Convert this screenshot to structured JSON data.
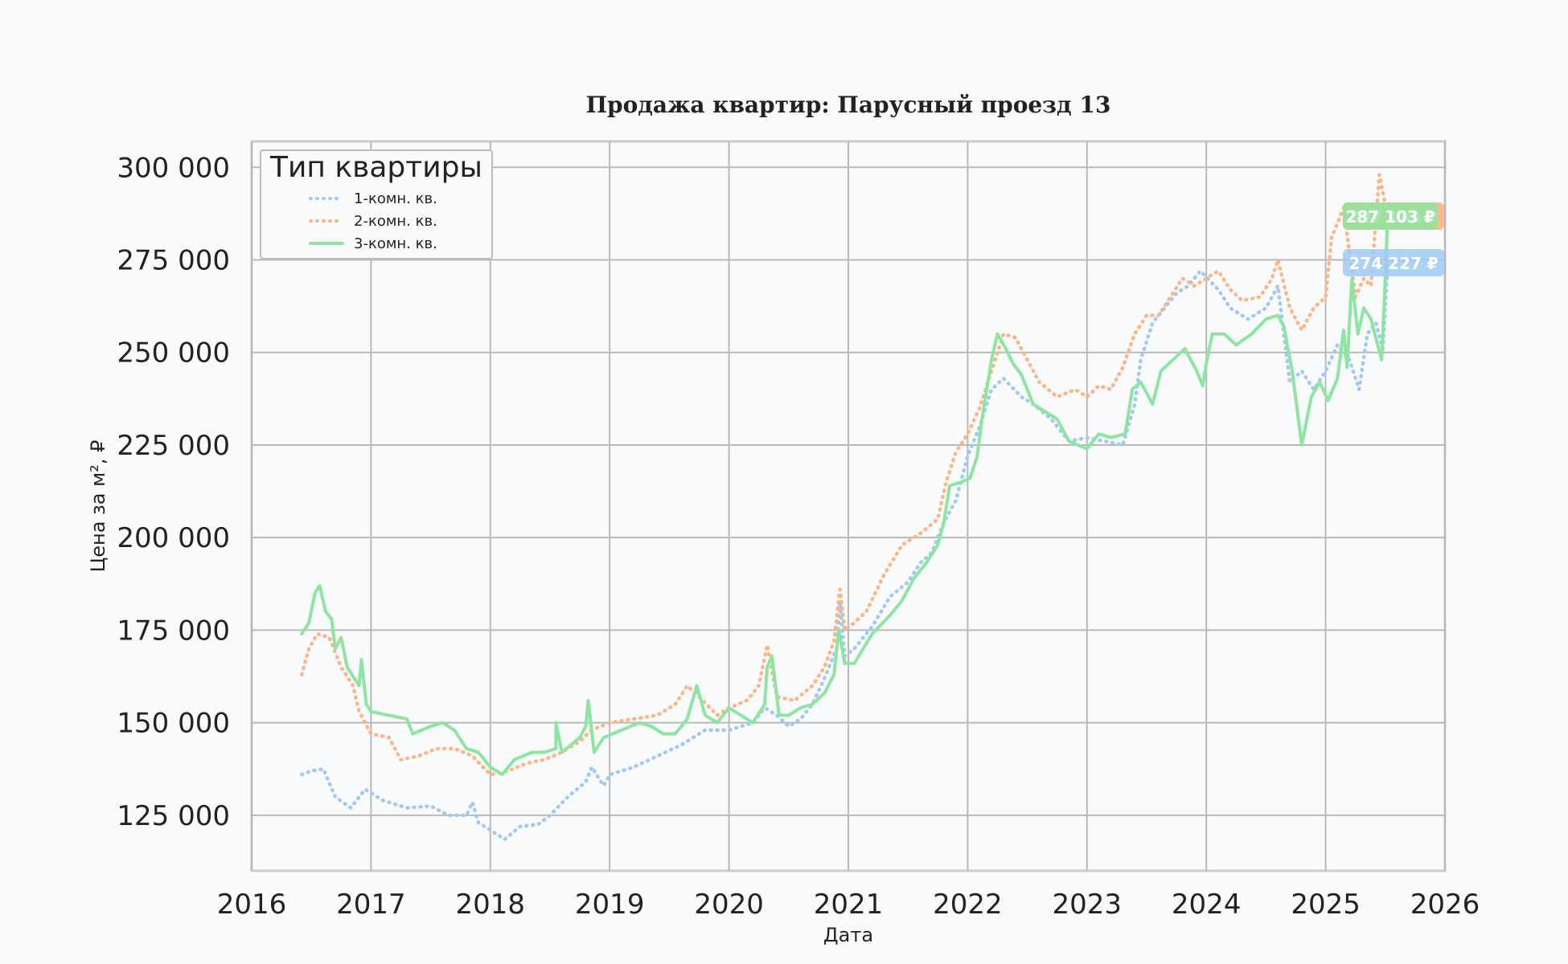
{
  "chart_data": {
    "type": "line",
    "title": "Продажа квартир: Парусный проезд 13",
    "xlabel": "Дата",
    "ylabel": "Цена за м², ₽",
    "xlim": [
      2016.0,
      2026.0
    ],
    "ylim": [
      110000,
      307000
    ],
    "grid": true,
    "legend_title": "Тип квартиры",
    "legend_position": "top-left",
    "x_ticks": [
      "2016",
      "2017",
      "2018",
      "2019",
      "2020",
      "2021",
      "2022",
      "2023",
      "2024",
      "2025",
      "2026"
    ],
    "y_ticks": [
      {
        "value": 125000,
        "label": "125 000"
      },
      {
        "value": 150000,
        "label": "150 000"
      },
      {
        "value": 175000,
        "label": "175 000"
      },
      {
        "value": 200000,
        "label": "200 000"
      },
      {
        "value": 225000,
        "label": "225 000"
      },
      {
        "value": 250000,
        "label": "250 000"
      },
      {
        "value": 275000,
        "label": "275 000"
      },
      {
        "value": 300000,
        "label": "300 000"
      }
    ],
    "series": [
      {
        "name": "1-комн. кв.",
        "color": "#a1c9f4",
        "style": "dotted",
        "last_label": "274 227 ₽",
        "points": [
          [
            2016.42,
            136000
          ],
          [
            2016.5,
            137000
          ],
          [
            2016.6,
            137500
          ],
          [
            2016.7,
            130000
          ],
          [
            2016.83,
            127000
          ],
          [
            2016.95,
            132000
          ],
          [
            2017.1,
            129000
          ],
          [
            2017.3,
            127000
          ],
          [
            2017.5,
            127500
          ],
          [
            2017.65,
            125000
          ],
          [
            2017.8,
            125000
          ],
          [
            2017.85,
            128500
          ],
          [
            2017.9,
            123000
          ],
          [
            2018.0,
            121000
          ],
          [
            2018.12,
            118500
          ],
          [
            2018.25,
            122000
          ],
          [
            2018.4,
            122500
          ],
          [
            2018.5,
            125000
          ],
          [
            2018.65,
            130000
          ],
          [
            2018.8,
            134000
          ],
          [
            2018.85,
            138000
          ],
          [
            2018.95,
            133000
          ],
          [
            2019.0,
            136000
          ],
          [
            2019.2,
            138000
          ],
          [
            2019.4,
            141000
          ],
          [
            2019.6,
            144000
          ],
          [
            2019.8,
            148000
          ],
          [
            2020.0,
            148000
          ],
          [
            2020.2,
            150000
          ],
          [
            2020.3,
            154000
          ],
          [
            2020.4,
            152000
          ],
          [
            2020.5,
            149000
          ],
          [
            2020.6,
            151000
          ],
          [
            2020.7,
            155000
          ],
          [
            2020.8,
            162000
          ],
          [
            2020.9,
            170000
          ],
          [
            2020.93,
            182000
          ],
          [
            2020.97,
            168000
          ],
          [
            2021.05,
            170000
          ],
          [
            2021.2,
            176000
          ],
          [
            2021.35,
            184000
          ],
          [
            2021.5,
            188000
          ],
          [
            2021.6,
            193000
          ],
          [
            2021.7,
            196000
          ],
          [
            2021.8,
            204000
          ],
          [
            2021.9,
            210000
          ],
          [
            2022.0,
            222000
          ],
          [
            2022.1,
            230000
          ],
          [
            2022.2,
            240000
          ],
          [
            2022.3,
            243000
          ],
          [
            2022.45,
            238000
          ],
          [
            2022.55,
            236000
          ],
          [
            2022.7,
            232000
          ],
          [
            2022.85,
            226000
          ],
          [
            2023.0,
            227000
          ],
          [
            2023.15,
            226000
          ],
          [
            2023.3,
            225000
          ],
          [
            2023.4,
            236000
          ],
          [
            2023.45,
            248000
          ],
          [
            2023.55,
            258000
          ],
          [
            2023.65,
            262000
          ],
          [
            2023.75,
            266000
          ],
          [
            2023.85,
            268000
          ],
          [
            2023.95,
            272000
          ],
          [
            2024.1,
            267000
          ],
          [
            2024.2,
            262000
          ],
          [
            2024.35,
            259000
          ],
          [
            2024.5,
            262000
          ],
          [
            2024.6,
            268000
          ],
          [
            2024.7,
            242000
          ],
          [
            2024.8,
            245000
          ],
          [
            2024.9,
            240000
          ],
          [
            2025.0,
            245000
          ],
          [
            2025.1,
            252000
          ],
          [
            2025.2,
            248000
          ],
          [
            2025.28,
            240000
          ],
          [
            2025.35,
            255000
          ],
          [
            2025.42,
            258000
          ],
          [
            2025.48,
            251000
          ],
          [
            2025.52,
            274227
          ]
        ]
      },
      {
        "name": "2-комн. кв.",
        "color": "#ffb482",
        "style": "dotted",
        "last_label": "287 103 ₽",
        "points": [
          [
            2016.42,
            163000
          ],
          [
            2016.48,
            170000
          ],
          [
            2016.55,
            174000
          ],
          [
            2016.65,
            173000
          ],
          [
            2016.75,
            165000
          ],
          [
            2016.85,
            160000
          ],
          [
            2016.9,
            153000
          ],
          [
            2017.0,
            147000
          ],
          [
            2017.15,
            146000
          ],
          [
            2017.25,
            140000
          ],
          [
            2017.4,
            141000
          ],
          [
            2017.55,
            143000
          ],
          [
            2017.7,
            143000
          ],
          [
            2017.85,
            141000
          ],
          [
            2018.0,
            136000
          ],
          [
            2018.15,
            137000
          ],
          [
            2018.3,
            139000
          ],
          [
            2018.45,
            140000
          ],
          [
            2018.6,
            142000
          ],
          [
            2018.75,
            145000
          ],
          [
            2018.85,
            148000
          ],
          [
            2019.0,
            150000
          ],
          [
            2019.2,
            151000
          ],
          [
            2019.4,
            152000
          ],
          [
            2019.55,
            155000
          ],
          [
            2019.65,
            160000
          ],
          [
            2019.75,
            157000
          ],
          [
            2019.9,
            152000
          ],
          [
            2020.0,
            154000
          ],
          [
            2020.15,
            156000
          ],
          [
            2020.25,
            160000
          ],
          [
            2020.32,
            171000
          ],
          [
            2020.4,
            157000
          ],
          [
            2020.55,
            156000
          ],
          [
            2020.7,
            160000
          ],
          [
            2020.8,
            165000
          ],
          [
            2020.88,
            172000
          ],
          [
            2020.93,
            186000
          ],
          [
            2020.97,
            175000
          ],
          [
            2021.05,
            177000
          ],
          [
            2021.15,
            180000
          ],
          [
            2021.3,
            190000
          ],
          [
            2021.45,
            198000
          ],
          [
            2021.6,
            201000
          ],
          [
            2021.75,
            205000
          ],
          [
            2021.82,
            215000
          ],
          [
            2021.9,
            223000
          ],
          [
            2022.0,
            228000
          ],
          [
            2022.1,
            235000
          ],
          [
            2022.2,
            245000
          ],
          [
            2022.3,
            255000
          ],
          [
            2022.4,
            254000
          ],
          [
            2022.5,
            248000
          ],
          [
            2022.6,
            242000
          ],
          [
            2022.75,
            238000
          ],
          [
            2022.9,
            240000
          ],
          [
            2023.0,
            238000
          ],
          [
            2023.1,
            241000
          ],
          [
            2023.2,
            240000
          ],
          [
            2023.3,
            246000
          ],
          [
            2023.4,
            255000
          ],
          [
            2023.5,
            260000
          ],
          [
            2023.6,
            260000
          ],
          [
            2023.7,
            265000
          ],
          [
            2023.8,
            270000
          ],
          [
            2023.9,
            268000
          ],
          [
            2024.0,
            270000
          ],
          [
            2024.1,
            272000
          ],
          [
            2024.2,
            267000
          ],
          [
            2024.3,
            264000
          ],
          [
            2024.45,
            265000
          ],
          [
            2024.55,
            270000
          ],
          [
            2024.6,
            275000
          ],
          [
            2024.7,
            262000
          ],
          [
            2024.8,
            256000
          ],
          [
            2024.9,
            262000
          ],
          [
            2025.0,
            265000
          ],
          [
            2025.05,
            281000
          ],
          [
            2025.1,
            285000
          ],
          [
            2025.15,
            289000
          ],
          [
            2025.2,
            277000
          ],
          [
            2025.25,
            265000
          ],
          [
            2025.32,
            270000
          ],
          [
            2025.38,
            268000
          ],
          [
            2025.45,
            298000
          ],
          [
            2025.5,
            290000
          ],
          [
            2025.52,
            287103
          ]
        ]
      },
      {
        "name": "3-комн. кв.",
        "color": "#8de5a1",
        "style": "solid",
        "last_label": "287 103 ₽",
        "points": [
          [
            2016.42,
            174000
          ],
          [
            2016.48,
            177000
          ],
          [
            2016.53,
            185000
          ],
          [
            2016.57,
            187000
          ],
          [
            2016.62,
            180000
          ],
          [
            2016.67,
            178000
          ],
          [
            2016.7,
            170000
          ],
          [
            2016.75,
            173000
          ],
          [
            2016.8,
            165000
          ],
          [
            2016.9,
            160000
          ],
          [
            2016.92,
            167000
          ],
          [
            2016.96,
            155000
          ],
          [
            2017.0,
            153000
          ],
          [
            2017.15,
            152000
          ],
          [
            2017.3,
            151000
          ],
          [
            2017.35,
            147000
          ],
          [
            2017.5,
            149000
          ],
          [
            2017.6,
            150000
          ],
          [
            2017.7,
            148000
          ],
          [
            2017.8,
            143000
          ],
          [
            2017.9,
            142000
          ],
          [
            2018.0,
            138000
          ],
          [
            2018.1,
            136000
          ],
          [
            2018.2,
            140000
          ],
          [
            2018.35,
            142000
          ],
          [
            2018.45,
            142000
          ],
          [
            2018.55,
            143000
          ],
          [
            2018.55,
            150000
          ],
          [
            2018.6,
            142000
          ],
          [
            2018.75,
            146000
          ],
          [
            2018.8,
            149000
          ],
          [
            2018.82,
            156000
          ],
          [
            2018.87,
            142000
          ],
          [
            2018.95,
            146000
          ],
          [
            2019.1,
            148000
          ],
          [
            2019.25,
            150000
          ],
          [
            2019.35,
            149000
          ],
          [
            2019.45,
            147000
          ],
          [
            2019.55,
            147000
          ],
          [
            2019.65,
            151000
          ],
          [
            2019.73,
            160000
          ],
          [
            2019.8,
            152000
          ],
          [
            2019.9,
            150000
          ],
          [
            2020.0,
            154000
          ],
          [
            2020.1,
            152000
          ],
          [
            2020.2,
            150000
          ],
          [
            2020.3,
            155000
          ],
          [
            2020.32,
            165000
          ],
          [
            2020.36,
            168000
          ],
          [
            2020.42,
            152000
          ],
          [
            2020.5,
            152000
          ],
          [
            2020.6,
            154000
          ],
          [
            2020.7,
            155000
          ],
          [
            2020.8,
            158000
          ],
          [
            2020.88,
            163000
          ],
          [
            2020.92,
            175000
          ],
          [
            2020.97,
            166000
          ],
          [
            2021.05,
            166000
          ],
          [
            2021.2,
            174000
          ],
          [
            2021.35,
            179000
          ],
          [
            2021.45,
            183000
          ],
          [
            2021.55,
            189000
          ],
          [
            2021.65,
            193000
          ],
          [
            2021.75,
            198000
          ],
          [
            2021.8,
            204000
          ],
          [
            2021.85,
            214000
          ],
          [
            2021.95,
            215000
          ],
          [
            2022.02,
            216000
          ],
          [
            2022.08,
            222000
          ],
          [
            2022.12,
            232000
          ],
          [
            2022.2,
            248000
          ],
          [
            2022.25,
            255000
          ],
          [
            2022.32,
            251000
          ],
          [
            2022.38,
            247000
          ],
          [
            2022.45,
            244000
          ],
          [
            2022.55,
            236000
          ],
          [
            2022.65,
            234000
          ],
          [
            2022.75,
            232000
          ],
          [
            2022.85,
            226000
          ],
          [
            2023.0,
            224000
          ],
          [
            2023.1,
            228000
          ],
          [
            2023.2,
            227000
          ],
          [
            2023.32,
            228000
          ],
          [
            2023.38,
            240000
          ],
          [
            2023.45,
            242000
          ],
          [
            2023.55,
            236000
          ],
          [
            2023.62,
            245000
          ],
          [
            2023.72,
            248000
          ],
          [
            2023.82,
            251000
          ],
          [
            2023.92,
            245000
          ],
          [
            2023.97,
            241000
          ],
          [
            2024.0,
            247000
          ],
          [
            2024.05,
            255000
          ],
          [
            2024.15,
            255000
          ],
          [
            2024.25,
            252000
          ],
          [
            2024.38,
            255000
          ],
          [
            2024.5,
            259000
          ],
          [
            2024.6,
            260000
          ],
          [
            2024.65,
            257000
          ],
          [
            2024.72,
            245000
          ],
          [
            2024.8,
            225000
          ],
          [
            2024.88,
            238000
          ],
          [
            2024.95,
            242000
          ],
          [
            2025.02,
            237000
          ],
          [
            2025.1,
            243000
          ],
          [
            2025.15,
            256000
          ],
          [
            2025.18,
            246000
          ],
          [
            2025.22,
            270000
          ],
          [
            2025.27,
            255000
          ],
          [
            2025.32,
            262000
          ],
          [
            2025.38,
            259000
          ],
          [
            2025.42,
            254000
          ],
          [
            2025.47,
            248000
          ],
          [
            2025.5,
            270000
          ],
          [
            2025.52,
            287103
          ]
        ]
      }
    ]
  }
}
